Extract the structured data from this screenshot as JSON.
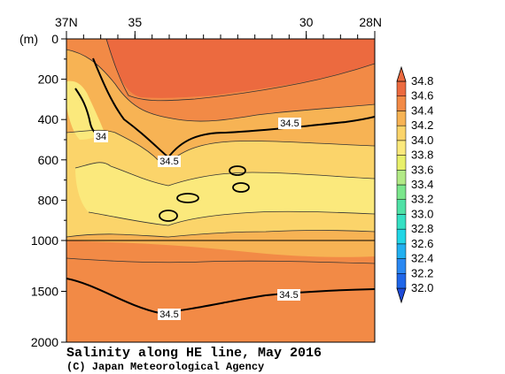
{
  "chart_data": {
    "type": "heatmap",
    "title": "Salinity along HE line, May 2016",
    "credit": "(C) Japan Meteorological Agency",
    "depth_unit": "(m)",
    "x_ticks": [
      {
        "lat": 37,
        "label": "37N"
      },
      {
        "lat": 35,
        "label": "35"
      },
      {
        "lat": 30,
        "label": "30"
      },
      {
        "lat": 28,
        "label": "28N"
      }
    ],
    "xlim": [
      37,
      28
    ],
    "y_ticks": [
      {
        "depth": 0,
        "label": "0"
      },
      {
        "depth": 200,
        "label": "200"
      },
      {
        "depth": 400,
        "label": "400"
      },
      {
        "depth": 600,
        "label": "600"
      },
      {
        "depth": 800,
        "label": "800"
      },
      {
        "depth": 1000,
        "label": "1000"
      },
      {
        "depth": 1500,
        "label": "1500"
      },
      {
        "depth": 2000,
        "label": "2000"
      }
    ],
    "ylim": [
      0,
      2000
    ],
    "scale_break_depth": 1000,
    "colorbar": {
      "levels": [
        "32.0",
        "32.2",
        "32.4",
        "32.6",
        "32.8",
        "33.0",
        "33.2",
        "33.4",
        "33.6",
        "33.8",
        "34.0",
        "34.2",
        "34.4",
        "34.6",
        "34.8"
      ],
      "colors": [
        "#1e4bd8",
        "#1f66e8",
        "#2a88f2",
        "#22b0f0",
        "#21d6e6",
        "#35e0c4",
        "#4fe1a6",
        "#7be68c",
        "#b2ea86",
        "#e8f06a",
        "#fbe97c",
        "#fbd46a",
        "#f7b354",
        "#f28a46",
        "#ec6a3f"
      ]
    },
    "contour_labels": [
      {
        "text": "34.5"
      },
      {
        "text": "34"
      },
      {
        "text": "34.5"
      },
      {
        "text": "34.5"
      },
      {
        "text": "34.5"
      }
    ]
  }
}
